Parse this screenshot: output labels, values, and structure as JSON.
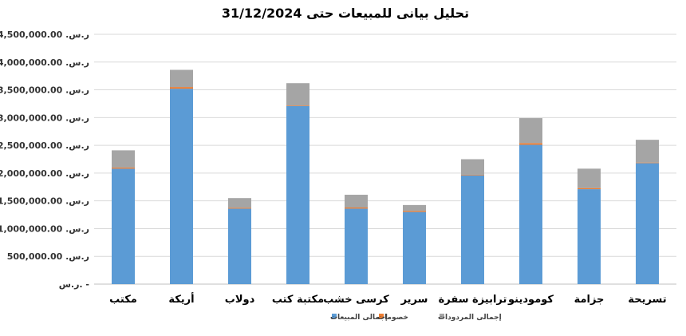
{
  "chart_data": {
    "type": "bar",
    "stacked": true,
    "title": "تحليل بيانى للمبيعات حتى 31/12/2024",
    "categories": [
      "مكتب",
      "أريكة",
      "دولاب",
      "مكتبة كتب",
      "كرسى خشب",
      "سرير",
      "ترابيزة سفرة",
      "كومودينو",
      "جزامة",
      "تسريحة"
    ],
    "ylim": [
      0,
      4500000
    ],
    "yticks": [
      {
        "value": 0,
        "label": "ر.س.    -"
      },
      {
        "value": 500000,
        "label": "ر.س. 500,000.00"
      },
      {
        "value": 1000000,
        "label": "ر.س. 1,000,000.00"
      },
      {
        "value": 1500000,
        "label": "ر.س. 1,500,000.00"
      },
      {
        "value": 2000000,
        "label": "ر.س. 2,000,000.00"
      },
      {
        "value": 2500000,
        "label": "ر.س. 2,500,000.00"
      },
      {
        "value": 3000000,
        "label": "ر.س. 3,000,000.00"
      },
      {
        "value": 3500000,
        "label": "ر.س. 3,500,000.00"
      },
      {
        "value": 4000000,
        "label": "ر.س. 4,000,000.00"
      },
      {
        "value": 4500000,
        "label": "ر.س. 4,500,000.00"
      }
    ],
    "series": [
      {
        "name": "إجمالى المبيعات",
        "color": "#5b9bd5",
        "values": [
          2080000,
          3520000,
          1360000,
          3210000,
          1360000,
          1300000,
          1960000,
          2510000,
          1710000,
          2180000
        ]
      },
      {
        "name": "خصومات",
        "color": "#ed7d31",
        "values": [
          20000,
          30000,
          15000,
          10000,
          20000,
          20000,
          10000,
          30000,
          20000,
          10000
        ]
      },
      {
        "name": "إجمالى المردودات",
        "color": "#a5a5a5",
        "values": [
          310000,
          310000,
          175000,
          400000,
          230000,
          105000,
          280000,
          450000,
          350000,
          410000
        ]
      }
    ],
    "grid": true,
    "legend": "bottom"
  }
}
